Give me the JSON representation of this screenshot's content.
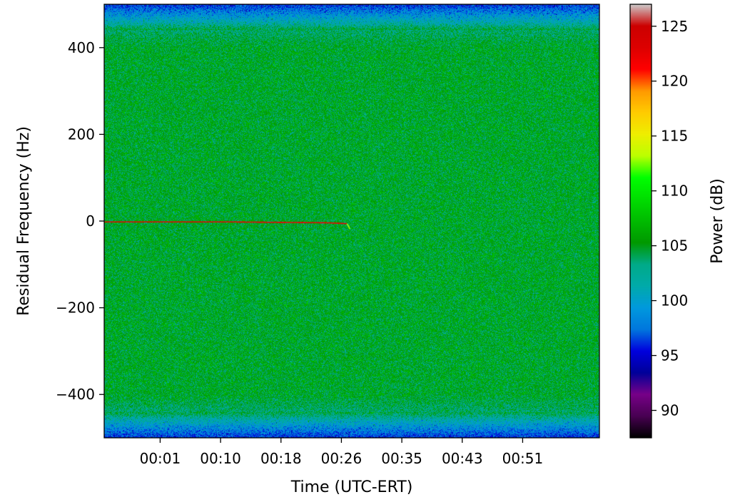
{
  "chart_data": {
    "type": "heatmap",
    "xlabel": "Time (UTC-ERT)",
    "ylabel": "Residual Frequency (Hz)",
    "colorbar_label": "Power (dB)",
    "colormap": "nipy_spectral",
    "x_ticks": [
      "00:01",
      "00:10",
      "00:18",
      "00:26",
      "00:35",
      "00:43",
      "00:51"
    ],
    "x_tick_fractions": [
      0.113,
      0.235,
      0.357,
      0.479,
      0.601,
      0.723,
      0.845
    ],
    "ylim": [
      -500,
      500
    ],
    "y_ticks": [
      -400,
      -200,
      0,
      200,
      400
    ],
    "y_tick_labels": [
      "−400",
      "−200",
      "0",
      "200",
      "400"
    ],
    "clim": [
      87.5,
      127
    ],
    "colorbar_ticks": [
      90,
      95,
      100,
      105,
      110,
      115,
      120,
      125
    ],
    "colorbar_tick_labels": [
      "90",
      "95",
      "100",
      "105",
      "110",
      "115",
      "120",
      "125"
    ],
    "background_power_db": 105,
    "band_edge_power_db": 96,
    "band_edge_hz": 440,
    "carrier": {
      "start_fraction": 0.0,
      "end_fraction": 0.49,
      "frequency_hz": [
        -2,
        -2,
        -4,
        -6
      ],
      "frequency_at_fraction": [
        0.0,
        0.25,
        0.45,
        0.49
      ],
      "power_db": 122,
      "tail_end_hz": -18
    }
  }
}
